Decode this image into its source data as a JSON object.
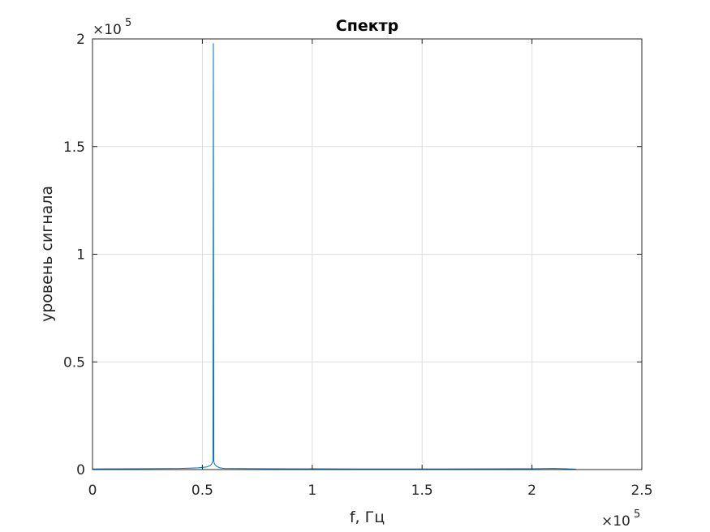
{
  "chart_data": {
    "type": "line",
    "title": "Спектр",
    "xlabel": "f, Гц",
    "ylabel": "уровень сигнала",
    "x_exponent_label": "×10",
    "x_exponent": "5",
    "y_exponent_label": "×10",
    "y_exponent": "5",
    "xlim": [
      0,
      250000
    ],
    "ylim": [
      0,
      200000
    ],
    "xticks": [
      0,
      50000,
      100000,
      150000,
      200000,
      250000
    ],
    "xtick_labels": [
      "0",
      "0.5",
      "1",
      "1.5",
      "2",
      "2.5"
    ],
    "yticks": [
      0,
      50000,
      100000,
      150000,
      200000
    ],
    "ytick_labels": [
      "0",
      "0.5",
      "1",
      "1.5",
      "2"
    ],
    "grid": true,
    "series": [
      {
        "color": "#0072bd",
        "x": [
          0,
          20000,
          40000,
          48000,
          50000,
          52000,
          53500,
          54200,
          54600,
          54800,
          55000,
          55200,
          55400,
          55800,
          56500,
          58000,
          60000,
          80000,
          120000,
          160000,
          200000,
          210000,
          215000,
          220000
        ],
        "y": [
          300,
          400,
          500,
          800,
          1000,
          1200,
          1800,
          2500,
          3500,
          4000,
          198000,
          4000,
          3000,
          2200,
          1500,
          800,
          500,
          400,
          300,
          300,
          400,
          500,
          400,
          200
        ]
      }
    ]
  }
}
